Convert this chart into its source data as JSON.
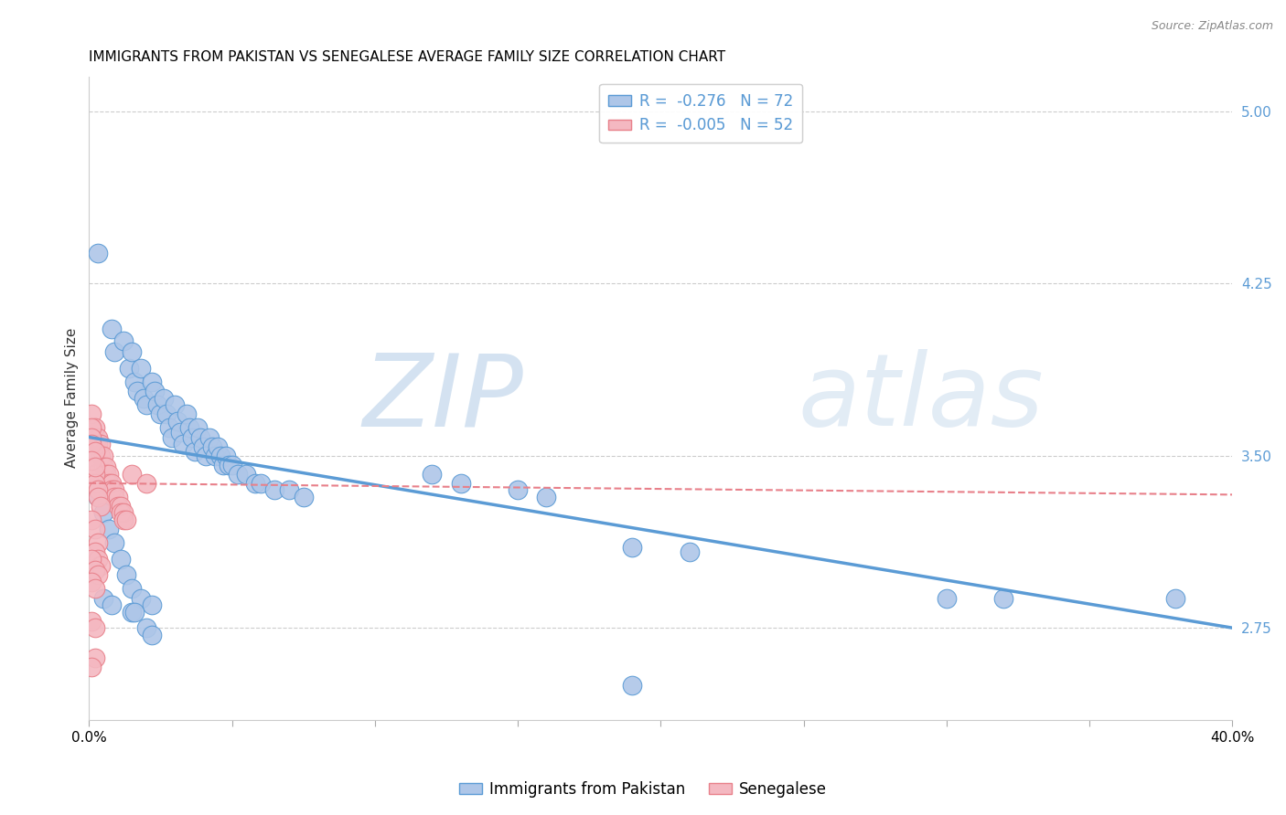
{
  "title": "IMMIGRANTS FROM PAKISTAN VS SENEGALESE AVERAGE FAMILY SIZE CORRELATION CHART",
  "source": "Source: ZipAtlas.com",
  "ylabel": "Average Family Size",
  "xlim": [
    0.0,
    0.4
  ],
  "ylim": [
    2.35,
    5.15
  ],
  "yticks": [
    2.75,
    3.5,
    4.25,
    5.0
  ],
  "xticks": [
    0.0,
    0.05,
    0.1,
    0.15,
    0.2,
    0.25,
    0.3,
    0.35,
    0.4
  ],
  "xticklabels": [
    "0.0%",
    "",
    "",
    "",
    "",
    "",
    "",
    "",
    "40.0%"
  ],
  "watermark_zip": "ZIP",
  "watermark_atlas": "atlas",
  "legend_line1": "R =  -0.276   N = 72",
  "legend_line2": "R =  -0.005   N = 52",
  "legend_bottom": [
    "Immigrants from Pakistan",
    "Senegalese"
  ],
  "blue_color": "#5b9bd5",
  "pink_color": "#e8808a",
  "blue_fill": "#aec6e8",
  "pink_fill": "#f4b8c1",
  "blue_scatter": [
    [
      0.003,
      4.38
    ],
    [
      0.008,
      4.05
    ],
    [
      0.009,
      3.95
    ],
    [
      0.012,
      4.0
    ],
    [
      0.014,
      3.88
    ],
    [
      0.015,
      3.95
    ],
    [
      0.016,
      3.82
    ],
    [
      0.017,
      3.78
    ],
    [
      0.018,
      3.88
    ],
    [
      0.019,
      3.75
    ],
    [
      0.02,
      3.72
    ],
    [
      0.022,
      3.82
    ],
    [
      0.023,
      3.78
    ],
    [
      0.024,
      3.72
    ],
    [
      0.025,
      3.68
    ],
    [
      0.026,
      3.75
    ],
    [
      0.027,
      3.68
    ],
    [
      0.028,
      3.62
    ],
    [
      0.029,
      3.58
    ],
    [
      0.03,
      3.72
    ],
    [
      0.031,
      3.65
    ],
    [
      0.032,
      3.6
    ],
    [
      0.033,
      3.55
    ],
    [
      0.034,
      3.68
    ],
    [
      0.035,
      3.62
    ],
    [
      0.036,
      3.58
    ],
    [
      0.037,
      3.52
    ],
    [
      0.038,
      3.62
    ],
    [
      0.039,
      3.58
    ],
    [
      0.04,
      3.54
    ],
    [
      0.041,
      3.5
    ],
    [
      0.042,
      3.58
    ],
    [
      0.043,
      3.54
    ],
    [
      0.044,
      3.5
    ],
    [
      0.045,
      3.54
    ],
    [
      0.046,
      3.5
    ],
    [
      0.047,
      3.46
    ],
    [
      0.048,
      3.5
    ],
    [
      0.049,
      3.46
    ],
    [
      0.05,
      3.46
    ],
    [
      0.052,
      3.42
    ],
    [
      0.055,
      3.42
    ],
    [
      0.058,
      3.38
    ],
    [
      0.06,
      3.38
    ],
    [
      0.065,
      3.35
    ],
    [
      0.07,
      3.35
    ],
    [
      0.075,
      3.32
    ],
    [
      0.003,
      3.32
    ],
    [
      0.005,
      3.25
    ],
    [
      0.007,
      3.18
    ],
    [
      0.009,
      3.12
    ],
    [
      0.011,
      3.05
    ],
    [
      0.013,
      2.98
    ],
    [
      0.015,
      2.92
    ],
    [
      0.018,
      2.88
    ],
    [
      0.022,
      2.85
    ],
    [
      0.12,
      3.42
    ],
    [
      0.13,
      3.38
    ],
    [
      0.15,
      3.35
    ],
    [
      0.16,
      3.32
    ],
    [
      0.19,
      3.1
    ],
    [
      0.21,
      3.08
    ],
    [
      0.3,
      2.88
    ],
    [
      0.38,
      2.88
    ],
    [
      0.005,
      2.88
    ],
    [
      0.008,
      2.85
    ],
    [
      0.015,
      2.82
    ],
    [
      0.016,
      2.82
    ],
    [
      0.02,
      2.75
    ],
    [
      0.022,
      2.72
    ],
    [
      0.19,
      2.5
    ],
    [
      0.32,
      2.88
    ]
  ],
  "pink_scatter": [
    [
      0.001,
      3.68
    ],
    [
      0.002,
      3.62
    ],
    [
      0.003,
      3.58
    ],
    [
      0.003,
      3.55
    ],
    [
      0.004,
      3.55
    ],
    [
      0.004,
      3.5
    ],
    [
      0.005,
      3.5
    ],
    [
      0.005,
      3.45
    ],
    [
      0.006,
      3.45
    ],
    [
      0.006,
      3.42
    ],
    [
      0.007,
      3.42
    ],
    [
      0.007,
      3.38
    ],
    [
      0.008,
      3.38
    ],
    [
      0.008,
      3.35
    ],
    [
      0.009,
      3.35
    ],
    [
      0.009,
      3.32
    ],
    [
      0.01,
      3.32
    ],
    [
      0.01,
      3.28
    ],
    [
      0.011,
      3.28
    ],
    [
      0.011,
      3.25
    ],
    [
      0.012,
      3.25
    ],
    [
      0.012,
      3.22
    ],
    [
      0.013,
      3.22
    ],
    [
      0.001,
      3.45
    ],
    [
      0.002,
      3.42
    ],
    [
      0.002,
      3.38
    ],
    [
      0.003,
      3.35
    ],
    [
      0.003,
      3.32
    ],
    [
      0.004,
      3.28
    ],
    [
      0.001,
      3.22
    ],
    [
      0.002,
      3.18
    ],
    [
      0.003,
      3.12
    ],
    [
      0.002,
      3.08
    ],
    [
      0.003,
      3.05
    ],
    [
      0.004,
      3.02
    ],
    [
      0.001,
      3.05
    ],
    [
      0.002,
      3.0
    ],
    [
      0.003,
      2.98
    ],
    [
      0.001,
      2.95
    ],
    [
      0.002,
      2.92
    ],
    [
      0.001,
      2.78
    ],
    [
      0.002,
      2.75
    ],
    [
      0.002,
      2.62
    ],
    [
      0.001,
      2.58
    ],
    [
      0.015,
      3.42
    ],
    [
      0.02,
      3.38
    ],
    [
      0.001,
      3.62
    ],
    [
      0.001,
      3.58
    ],
    [
      0.001,
      3.55
    ],
    [
      0.002,
      3.52
    ],
    [
      0.001,
      3.48
    ],
    [
      0.002,
      3.45
    ]
  ],
  "blue_line_x": [
    0.0,
    0.4
  ],
  "blue_line_y": [
    3.58,
    2.75
  ],
  "pink_line_x": [
    0.0,
    0.4
  ],
  "pink_line_y": [
    3.38,
    3.33
  ],
  "grid_color": "#cccccc",
  "background_color": "#ffffff",
  "title_fontsize": 11,
  "axis_label_fontsize": 11,
  "tick_fontsize": 11,
  "right_tick_color": "#5b9bd5"
}
